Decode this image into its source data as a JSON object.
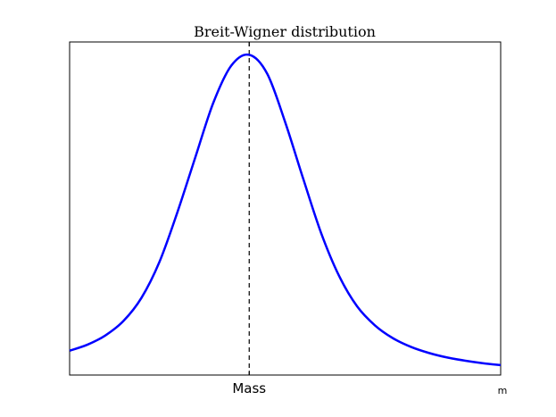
{
  "chart_data": {
    "type": "line",
    "title": "Breit-Wigner distribution",
    "xlabel": "m",
    "ylabel": "",
    "x_ticks": [
      {
        "value": 0,
        "label": "Mass"
      }
    ],
    "xlim": [
      -2.0,
      2.8
    ],
    "ylim": [
      0,
      1.04
    ],
    "grid": false,
    "legend": "none",
    "series": [
      {
        "color": "#0000ff",
        "points": [
          [
            -2.0,
            0.076
          ],
          [
            -1.8,
            0.095
          ],
          [
            -1.6,
            0.124
          ],
          [
            -1.4,
            0.169
          ],
          [
            -1.2,
            0.241
          ],
          [
            -1.0,
            0.353
          ],
          [
            -0.8,
            0.508
          ],
          [
            -0.6,
            0.68
          ],
          [
            -0.4,
            0.85
          ],
          [
            -0.2,
            0.966
          ],
          [
            0.0,
            1.0
          ],
          [
            0.2,
            0.941
          ],
          [
            0.4,
            0.79
          ],
          [
            0.6,
            0.614
          ],
          [
            0.8,
            0.444
          ],
          [
            1.0,
            0.31
          ],
          [
            1.2,
            0.215
          ],
          [
            1.4,
            0.155
          ],
          [
            1.6,
            0.115
          ],
          [
            1.8,
            0.088
          ],
          [
            2.0,
            0.069
          ],
          [
            2.2,
            0.055
          ],
          [
            2.4,
            0.045
          ],
          [
            2.6,
            0.037
          ],
          [
            2.8,
            0.031
          ]
        ]
      }
    ],
    "annotations": [
      {
        "type": "vline",
        "x": 0,
        "style": "dashed",
        "color": "#000000"
      }
    ]
  }
}
